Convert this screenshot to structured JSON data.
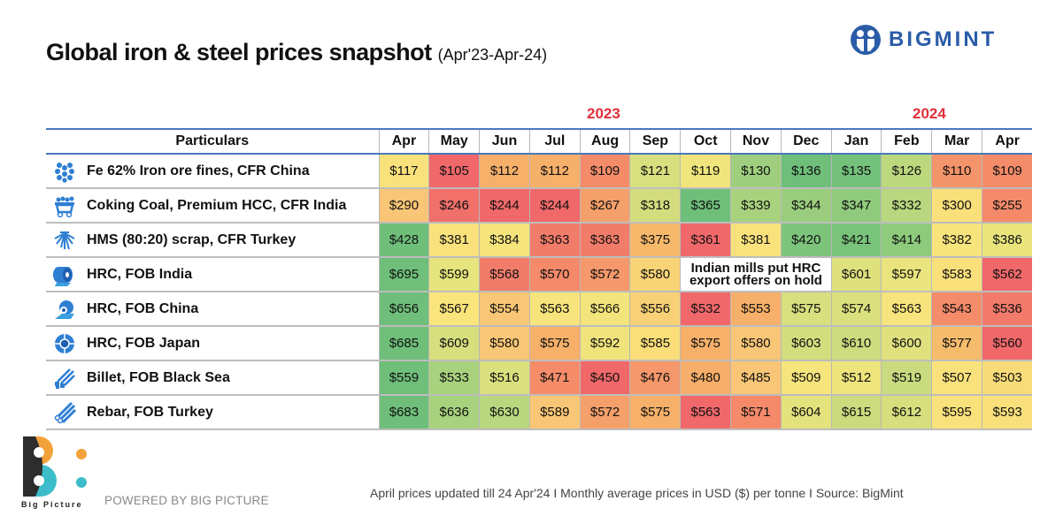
{
  "header": {
    "title": "Global iron & steel prices snapshot",
    "subtitle": "(Apr'23-Apr-24)",
    "brand": "BIGMINT"
  },
  "chart_data": {
    "type": "table",
    "title": "Global iron & steel prices snapshot (Apr'23-Apr-24)",
    "unit": "USD per tonne",
    "year_labels": [
      {
        "label": "2023",
        "spans": [
          "Apr",
          "May",
          "Jun",
          "Jul",
          "Aug",
          "Sep",
          "Oct",
          "Nov",
          "Dec"
        ]
      },
      {
        "label": "2024",
        "spans": [
          "Jan",
          "Feb",
          "Mar",
          "Apr"
        ]
      }
    ],
    "row_header": "Particulars",
    "columns": [
      "Apr",
      "May",
      "Jun",
      "Jul",
      "Aug",
      "Sep",
      "Oct",
      "Nov",
      "Dec",
      "Jan",
      "Feb",
      "Mar",
      "Apr"
    ],
    "rows": [
      {
        "name": "Fe 62% Iron ore fines, CFR China",
        "icon": "iron-ore-icon",
        "values": [
          "$117",
          "$105",
          "$112",
          "$112",
          "$109",
          "$121",
          "$119",
          "$130",
          "$136",
          "$135",
          "$126",
          "$110",
          "$109"
        ],
        "colors": [
          "#f9e27c",
          "#f0686a",
          "#f6b06a",
          "#f6b06a",
          "#f48c6a",
          "#d8df7e",
          "#f0e57c",
          "#9fcf7e",
          "#6fbf7a",
          "#74c17b",
          "#bcd87d",
          "#f4946a",
          "#f48c6a"
        ]
      },
      {
        "name": "Coking Coal, Premium HCC, CFR India",
        "icon": "coal-cart-icon",
        "values": [
          "$290",
          "$246",
          "$244",
          "$244",
          "$267",
          "$318",
          "$365",
          "$339",
          "$344",
          "$347",
          "$332",
          "$300",
          "$255"
        ],
        "colors": [
          "#f8c676",
          "#f1706a",
          "#f0686a",
          "#f0686a",
          "#f5a06b",
          "#d3dd7e",
          "#6fbf7a",
          "#a8d27e",
          "#9acd7d",
          "#90ca7c",
          "#b8d77e",
          "#f9e07b",
          "#f48a6a"
        ]
      },
      {
        "name": "HMS (80:20) scrap, CFR Turkey",
        "icon": "scrap-icon",
        "values": [
          "$428",
          "$381",
          "$384",
          "$363",
          "$363",
          "$375",
          "$361",
          "$381",
          "$420",
          "$421",
          "$414",
          "$382",
          "$386"
        ],
        "colors": [
          "#6fbf7a",
          "#f9e27c",
          "#f5e47c",
          "#f27c6a",
          "#f27c6a",
          "#f6b86b",
          "#f0686a",
          "#f9e27c",
          "#7cc47b",
          "#79c37b",
          "#8ecb7c",
          "#f7e47c",
          "#e9e47c"
        ]
      },
      {
        "name": "HRC, FOB India",
        "icon": "hrc-coil-icon",
        "values": [
          "$695",
          "$599",
          "$568",
          "$570",
          "$572",
          "$580",
          null,
          null,
          null,
          "$601",
          "$597",
          "$583",
          "$562"
        ],
        "note": "Indian mills put HRC export offers on hold",
        "colors": [
          "#6fbf7a",
          "#e6e47d",
          "#f27c6a",
          "#f48a6a",
          "#f5986b",
          "#f8d476",
          null,
          null,
          null,
          "#dfe17e",
          "#e9e47d",
          "#f9e07b",
          "#f0686a"
        ]
      },
      {
        "name": "HRC, FOB China",
        "icon": "hrc-roll-icon",
        "values": [
          "$656",
          "$567",
          "$554",
          "$563",
          "$566",
          "$556",
          "$532",
          "$553",
          "$575",
          "$574",
          "$563",
          "$543",
          "$536"
        ],
        "colors": [
          "#6fbf7a",
          "#f9e57c",
          "#f8c676",
          "#f7e47c",
          "#f3e57c",
          "#f8d076",
          "#f0686a",
          "#f6b06a",
          "#d8df7e",
          "#dbe07e",
          "#f7e47c",
          "#f48c6a",
          "#f27a6a"
        ]
      },
      {
        "name": "HRC, FOB Japan",
        "icon": "hrc-disc-icon",
        "values": [
          "$685",
          "$609",
          "$580",
          "$575",
          "$592",
          "$585",
          "$575",
          "$580",
          "$603",
          "$610",
          "$600",
          "$577",
          "$560"
        ],
        "colors": [
          "#6fbf7a",
          "#d6de7e",
          "#f8c676",
          "#f6b06a",
          "#f0e37c",
          "#f9de7a",
          "#f6b06a",
          "#f8c676",
          "#d2dd7e",
          "#cddc7e",
          "#e0e17e",
          "#f6bc6d",
          "#f0686a"
        ]
      },
      {
        "name": "Billet, FOB Black Sea",
        "icon": "billet-icon",
        "values": [
          "$559",
          "$533",
          "$516",
          "$471",
          "$450",
          "$476",
          "$480",
          "$485",
          "$509",
          "$512",
          "$519",
          "$507",
          "$503"
        ],
        "colors": [
          "#6fbf7a",
          "#a8d27e",
          "#dbe07e",
          "#f48c6a",
          "#f0686a",
          "#f5986b",
          "#f6ae6a",
          "#f8c676",
          "#f6e47c",
          "#eee47c",
          "#c9db7e",
          "#f9e27c",
          "#f9dc7a"
        ]
      },
      {
        "name": "Rebar, FOB Turkey",
        "icon": "rebar-icon",
        "values": [
          "$683",
          "$636",
          "$630",
          "$589",
          "$572",
          "$575",
          "$563",
          "$571",
          "$604",
          "$615",
          "$612",
          "$595",
          "$593"
        ],
        "colors": [
          "#6fbf7a",
          "#a8d27e",
          "#b8d77e",
          "#f8c676",
          "#f5a06b",
          "#f6b06a",
          "#f0686a",
          "#f48a6a",
          "#e4e27d",
          "#cbdb7e",
          "#d6de7e",
          "#f9e27c",
          "#f9e07b"
        ]
      }
    ]
  },
  "footer": {
    "brand_small": "Big Picture",
    "powered_by": "POWERED BY BIG PICTURE",
    "note": "April prices updated till 24 Apr'24  I  Monthly average prices in USD ($) per tonne  I  Source: BigMint"
  },
  "colors": {
    "accent_red": "#e0303b",
    "brand_blue": "#2a5ca8",
    "icon_blue": "#2f7fd3"
  }
}
